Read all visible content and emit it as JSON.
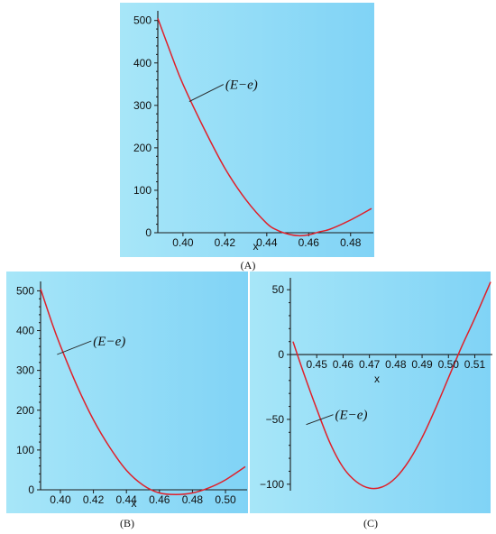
{
  "colors": {
    "background_left": "#a7e6f8",
    "background_right": "#80d3f6",
    "curve": "#e0202a",
    "axis": "#1a1a1a"
  },
  "chart_data": [
    {
      "type": "line",
      "caption": "(A)",
      "title": "",
      "xlabel": "x",
      "ylabel": "",
      "xlim": [
        0.388,
        0.49
      ],
      "ylim": [
        0,
        510
      ],
      "x_ticks": [
        0.4,
        0.42,
        0.44,
        0.46,
        0.48
      ],
      "x_tick_labels": [
        "0.40",
        "0.42",
        "0.44",
        "0.46",
        "0.48"
      ],
      "y_ticks": [
        0,
        100,
        200,
        300,
        400,
        500
      ],
      "y_tick_labels": [
        "0",
        "100",
        "200",
        "300",
        "400",
        "500"
      ],
      "grid": false,
      "series": [
        {
          "annotation": "(E−e)",
          "x": [
            0.388,
            0.395,
            0.4,
            0.41,
            0.42,
            0.43,
            0.44,
            0.445,
            0.45,
            0.455,
            0.46,
            0.465,
            0.47,
            0.48,
            0.49
          ],
          "y": [
            505,
            412,
            350,
            246,
            152,
            78,
            22,
            6,
            -3,
            -7,
            -5,
            2,
            8,
            30,
            57
          ]
        }
      ],
      "annotation_anchor": [
        0.403,
        309
      ]
    },
    {
      "type": "line",
      "caption": "(B)",
      "title": "",
      "xlabel": "x",
      "ylabel": "",
      "xlim": [
        0.388,
        0.512
      ],
      "ylim": [
        0,
        510
      ],
      "x_ticks": [
        0.4,
        0.42,
        0.44,
        0.46,
        0.48,
        0.5
      ],
      "x_tick_labels": [
        "0.40",
        "0.42",
        "0.44",
        "0.46",
        "0.48",
        "0.50"
      ],
      "y_ticks": [
        0,
        100,
        200,
        300,
        400,
        500
      ],
      "y_tick_labels": [
        "0",
        "100",
        "200",
        "300",
        "400",
        "500"
      ],
      "grid": false,
      "series": [
        {
          "annotation": "(E−e)",
          "x": [
            0.388,
            0.395,
            0.4,
            0.41,
            0.42,
            0.43,
            0.44,
            0.45,
            0.46,
            0.47,
            0.48,
            0.49,
            0.5,
            0.512
          ],
          "y": [
            505,
            418,
            362,
            262,
            176,
            106,
            49,
            12,
            -8,
            -12,
            -8,
            5,
            25,
            58
          ]
        }
      ],
      "annotation_anchor": [
        0.398,
        340
      ]
    },
    {
      "type": "line",
      "caption": "(C)",
      "title": "",
      "xlabel": "x",
      "ylabel": "",
      "xlim": [
        0.44,
        0.516
      ],
      "ylim": [
        -105,
        55
      ],
      "x_ticks": [
        0.45,
        0.46,
        0.47,
        0.48,
        0.49,
        0.5,
        0.51
      ],
      "x_tick_labels": [
        "0.45",
        "0.46",
        "0.47",
        "0.48",
        "0.49",
        "0.50",
        "0.51"
      ],
      "y_ticks": [
        -100,
        -50,
        0,
        50
      ],
      "y_tick_labels": [
        "−100",
        "−50",
        "0",
        "50"
      ],
      "grid": false,
      "series": [
        {
          "annotation": "(E−e)",
          "x": [
            0.441,
            0.445,
            0.45,
            0.455,
            0.46,
            0.465,
            0.47,
            0.475,
            0.48,
            0.485,
            0.49,
            0.495,
            0.5,
            0.505,
            0.51,
            0.516
          ],
          "y": [
            10,
            -14,
            -42,
            -68,
            -87,
            -98,
            -103,
            -102,
            -95,
            -82,
            -64,
            -42,
            -18,
            6,
            28,
            56
          ]
        }
      ],
      "annotation_anchor": [
        0.446,
        -54
      ]
    }
  ]
}
